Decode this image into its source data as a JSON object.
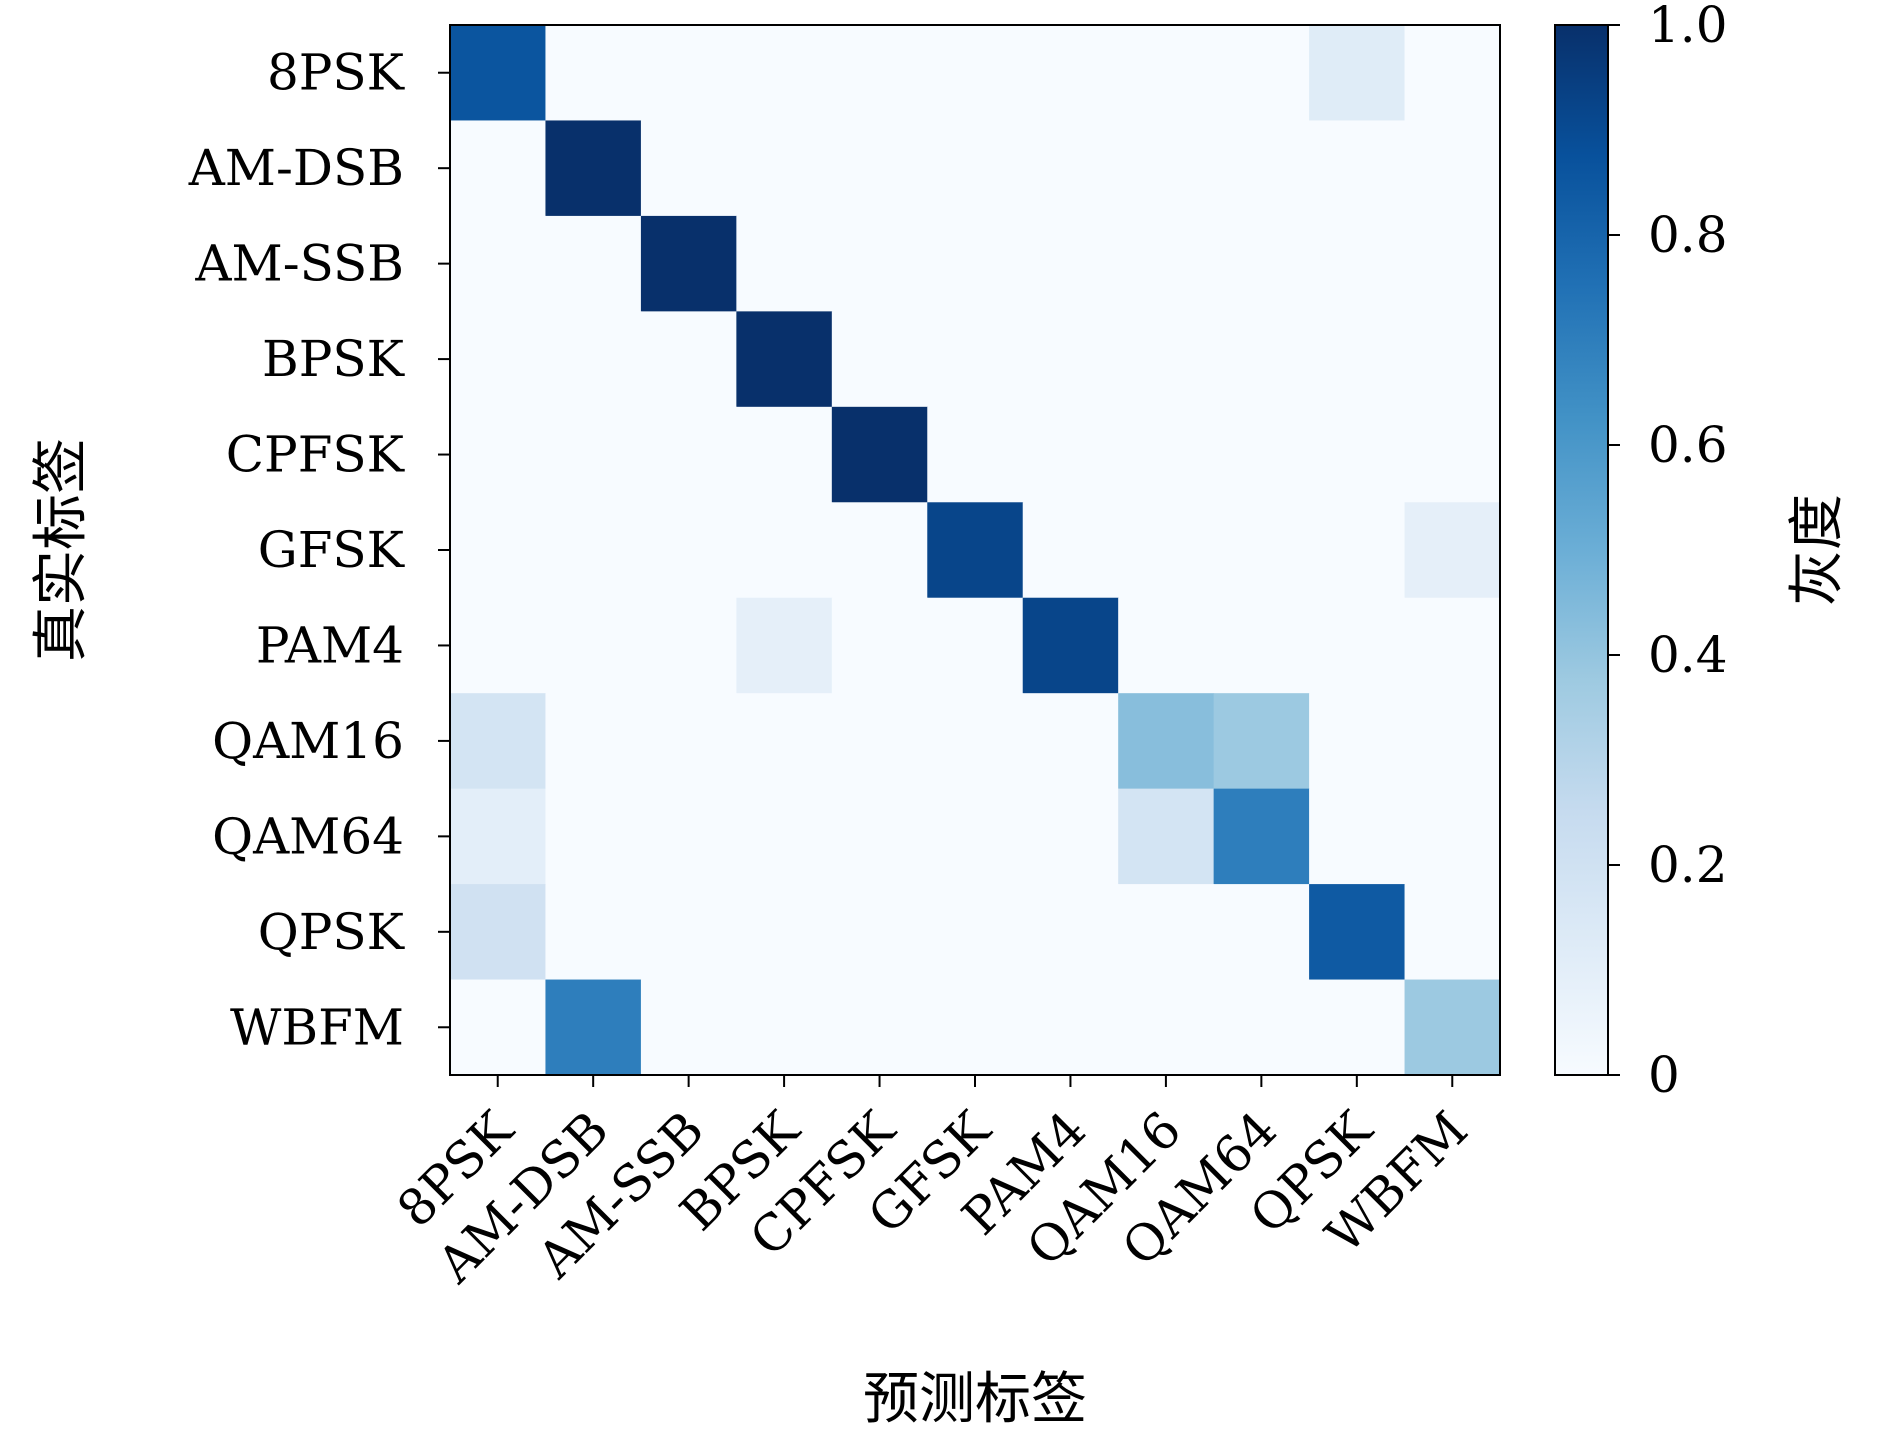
{
  "chart_data": {
    "type": "heatmap",
    "x_categories": [
      "8PSK",
      "AM-DSB",
      "AM-SSB",
      "BPSK",
      "CPFSK",
      "GFSK",
      "PAM4",
      "QAM16",
      "QAM64",
      "QPSK",
      "WBFM"
    ],
    "y_categories": [
      "8PSK",
      "AM-DSB",
      "AM-SSB",
      "BPSK",
      "CPFSK",
      "GFSK",
      "PAM4",
      "QAM16",
      "QAM64",
      "QPSK",
      "WBFM"
    ],
    "values": [
      [
        0.86,
        0,
        0,
        0,
        0,
        0,
        0,
        0,
        0,
        0.12,
        0
      ],
      [
        0,
        1.0,
        0,
        0,
        0,
        0,
        0,
        0,
        0,
        0,
        0
      ],
      [
        0,
        0,
        1.0,
        0,
        0,
        0,
        0,
        0,
        0,
        0,
        0
      ],
      [
        0,
        0,
        0,
        1.0,
        0,
        0,
        0,
        0,
        0,
        0,
        0
      ],
      [
        0,
        0,
        0,
        0,
        1.0,
        0,
        0,
        0,
        0,
        0,
        0
      ],
      [
        0,
        0,
        0,
        0,
        0,
        0.92,
        0,
        0,
        0,
        0,
        0.09
      ],
      [
        0,
        0,
        0,
        0.09,
        0,
        0,
        0.92,
        0,
        0,
        0,
        0
      ],
      [
        0.18,
        0,
        0,
        0,
        0,
        0,
        0,
        0.43,
        0.38,
        0,
        0
      ],
      [
        0.1,
        0,
        0,
        0,
        0,
        0,
        0,
        0.18,
        0.7,
        0,
        0
      ],
      [
        0.2,
        0,
        0,
        0,
        0,
        0,
        0,
        0,
        0,
        0.84,
        0
      ],
      [
        0,
        0.7,
        0,
        0,
        0,
        0,
        0,
        0,
        0,
        0,
        0.38
      ]
    ],
    "xlabel": "预测标签",
    "ylabel": "真实标签",
    "colorbar": {
      "label": "灰度",
      "range": [
        0,
        1.0
      ],
      "ticks": [
        0,
        0.2,
        0.4,
        0.6,
        0.8,
        1.0
      ],
      "tick_labels": [
        "0",
        "0.2",
        "0.4",
        "0.6",
        "0.8",
        "1.0"
      ],
      "colormap": "Blues"
    },
    "title": ""
  }
}
